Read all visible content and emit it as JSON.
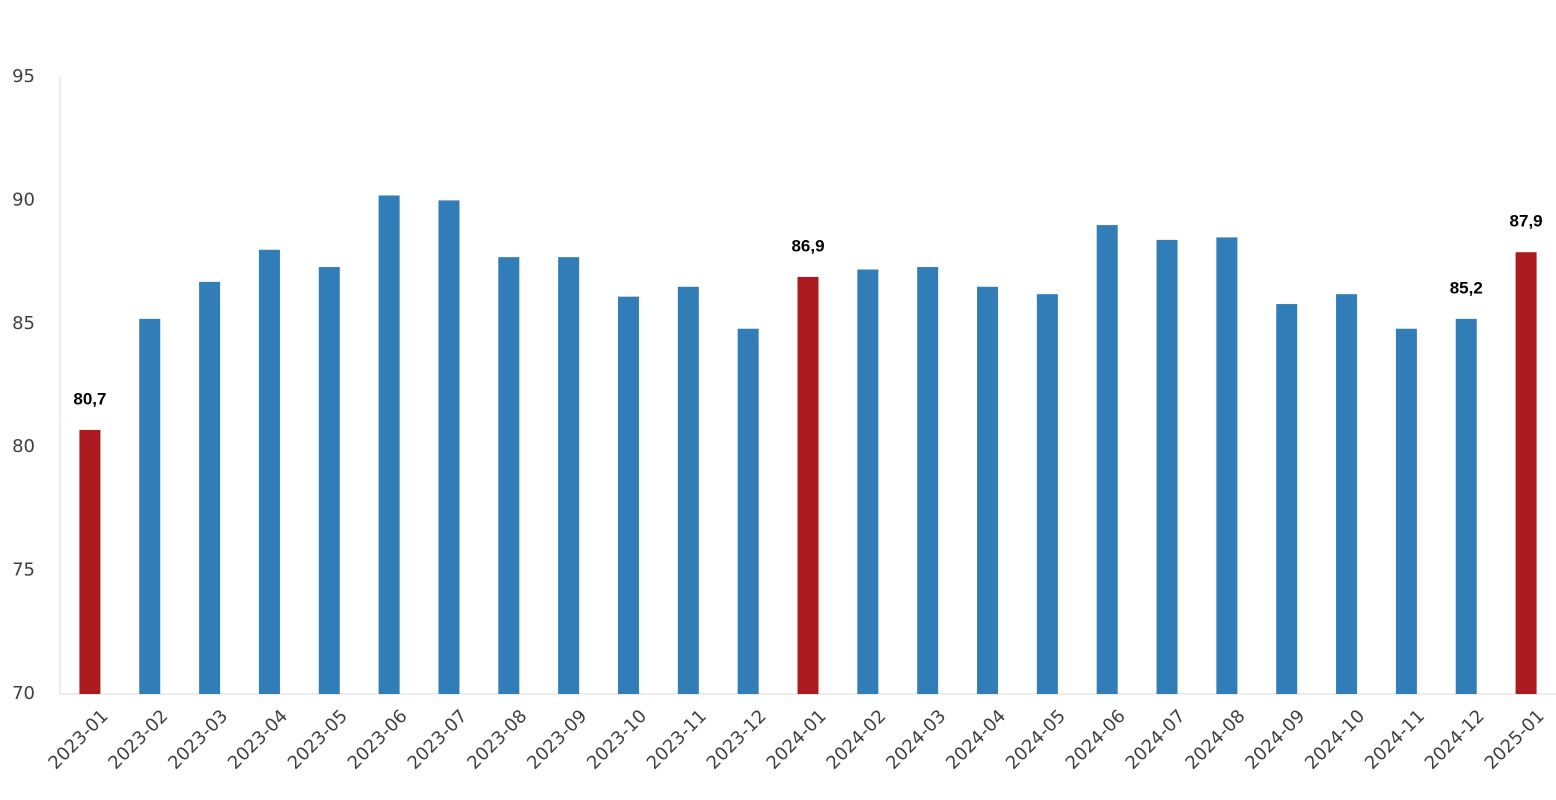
{
  "chart_data": {
    "type": "bar",
    "categories": [
      "2023-01",
      "2023-02",
      "2023-03",
      "2023-04",
      "2023-05",
      "2023-06",
      "2023-07",
      "2023-08",
      "2023-09",
      "2023-10",
      "2023-11",
      "2023-12",
      "2024-01",
      "2024-02",
      "2024-03",
      "2024-04",
      "2024-05",
      "2024-06",
      "2024-07",
      "2024-08",
      "2024-09",
      "2024-10",
      "2024-11",
      "2024-12",
      "2025-01"
    ],
    "values": [
      80.7,
      85.2,
      86.7,
      88.0,
      87.3,
      90.2,
      90.0,
      87.7,
      87.7,
      86.1,
      86.5,
      84.8,
      86.9,
      87.2,
      87.3,
      86.5,
      86.2,
      89.0,
      88.4,
      88.5,
      85.8,
      86.2,
      84.8,
      85.2,
      87.9
    ],
    "value_labels": [
      "80,7",
      null,
      null,
      null,
      null,
      null,
      null,
      null,
      null,
      null,
      null,
      null,
      "86,9",
      null,
      null,
      null,
      null,
      null,
      null,
      null,
      null,
      null,
      null,
      "85,2",
      "87,9"
    ],
    "colors": [
      "#ab1a1f",
      "#317db8",
      "#317db8",
      "#317db8",
      "#317db8",
      "#317db8",
      "#317db8",
      "#317db8",
      "#317db8",
      "#317db8",
      "#317db8",
      "#317db8",
      "#ab1a1f",
      "#317db8",
      "#317db8",
      "#317db8",
      "#317db8",
      "#317db8",
      "#317db8",
      "#317db8",
      "#317db8",
      "#317db8",
      "#317db8",
      "#317db8",
      "#ab1a1f"
    ],
    "ylim": [
      70,
      95
    ],
    "yticks": [
      70,
      75,
      80,
      85,
      90,
      95
    ],
    "grid": false
  }
}
